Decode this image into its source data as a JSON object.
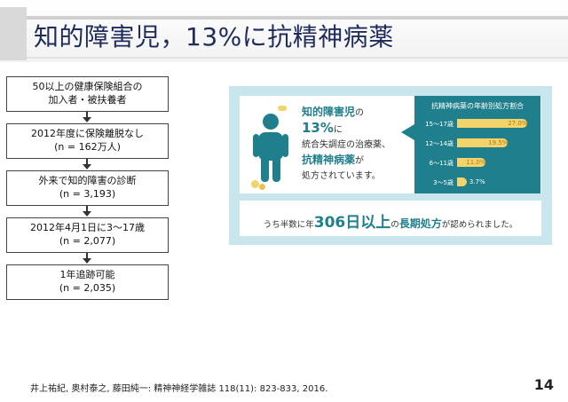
{
  "slide": {
    "title": "知的障害児，13%に抗精神病薬",
    "page_number": "14",
    "citation": "井上祐紀, 奥村泰之, 藤田純一: 精神神経学雑誌 118(11): 823-833, 2016."
  },
  "flowchart": {
    "steps": [
      {
        "line1": "50以上の健康保険組合の",
        "line2": "加入者・被扶養者"
      },
      {
        "line1": "2012年度に保険離脱なし",
        "line2": "(n = 162万人)"
      },
      {
        "line1": "外来で知的障害の診断",
        "line2": "(n = 3,193)"
      },
      {
        "line1": "2012年4月1日に3～17歳",
        "line2": "(n = 2,077)"
      },
      {
        "line1": "1年追跡可能",
        "line2": "(n = 2,035)"
      }
    ]
  },
  "infographic": {
    "heading": "知的障害児",
    "heading_suffix": "の",
    "percent": "13%",
    "percent_suffix": "に",
    "line3": "統合失調症の治療薬、",
    "drug": "抗精神病薬",
    "drug_suffix": "が",
    "line5": "処方されています。",
    "bottom_pre": "うち半数に年",
    "bottom_num": "306日以上",
    "bottom_mid": "の",
    "bottom_emph": "長期処方",
    "bottom_post": "が認められました。"
  },
  "chart_data": {
    "type": "bar",
    "title": "抗精神病薬の年齢別処方割合",
    "categories": [
      "15～17歳",
      "12～14歳",
      "6～11歳",
      "3～5歳"
    ],
    "values": [
      27.0,
      19.5,
      11.0,
      3.7
    ],
    "value_labels": [
      "27.0%",
      "19.5%",
      "11.0%",
      "3.7%"
    ],
    "colors": {
      "bar": "#f4d36b",
      "panel": "#1f7f8c"
    }
  }
}
